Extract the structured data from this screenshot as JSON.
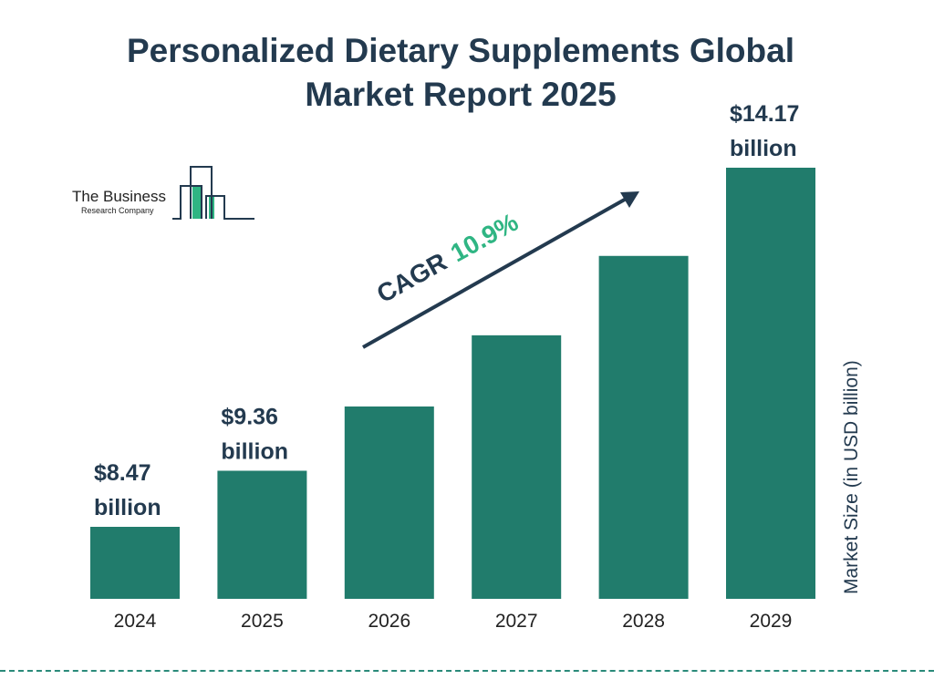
{
  "chart_data": {
    "type": "bar",
    "title_line1": "Personalized Dietary Supplements Global",
    "title_line2": "Market Report 2025",
    "categories": [
      "2024",
      "2025",
      "2026",
      "2027",
      "2028",
      "2029"
    ],
    "values": [
      8.47,
      9.36,
      10.38,
      11.51,
      12.77,
      14.17
    ],
    "data_labels": [
      {
        "index": 0,
        "value": "$8.47",
        "unit": "billion"
      },
      {
        "index": 1,
        "value": "$9.36",
        "unit": "billion"
      },
      {
        "index": 5,
        "value": "$14.17",
        "unit": "billion"
      }
    ],
    "ylabel": "Market Size (in USD billion)",
    "cagr_label": "CAGR",
    "cagr_value": "10.9%",
    "grid": false,
    "colors": {
      "bar": "#217c6c",
      "title": "#233a4f",
      "cagr": "#2fb583",
      "dash": "#2a8a7a"
    }
  },
  "logo": {
    "line1": "The Business",
    "line2": "Research Company"
  }
}
